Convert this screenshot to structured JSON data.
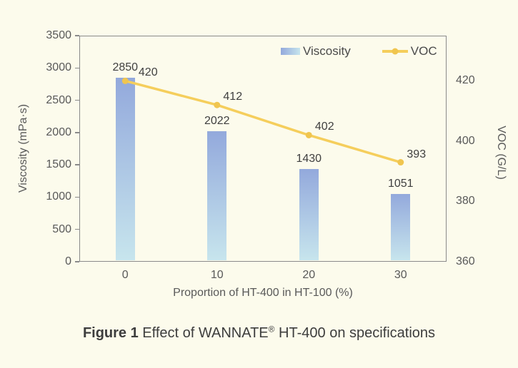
{
  "caption": {
    "label": "Figure 1",
    "title_pre": "Effect of WANNATE",
    "registered_mark": "®",
    "title_post": "HT-400 on specifications"
  },
  "chart_data": {
    "type": "bar",
    "subtype": "combo-bar-line",
    "categories": [
      "0",
      "10",
      "20",
      "30"
    ],
    "series": [
      {
        "name": "Viscosity",
        "type": "bar",
        "axis": "left",
        "values": [
          2850,
          2022,
          1430,
          1051
        ]
      },
      {
        "name": "VOC",
        "type": "line",
        "axis": "right",
        "values": [
          420,
          412,
          402,
          393
        ]
      }
    ],
    "xlabel": "Proportion of HT-400 in HT-100 (%)",
    "left_axis": {
      "label": "Viscosity (mPa·s)",
      "min": 0,
      "max": 3500,
      "ticks": [
        0,
        500,
        1000,
        1500,
        2000,
        2500,
        3000,
        3500
      ]
    },
    "right_axis": {
      "label": "VOC (G/L)",
      "min": 360,
      "max": 435,
      "ticks": [
        360,
        380,
        400,
        420
      ]
    },
    "legend": {
      "position": "top-right-inside",
      "entries": [
        "Viscosity",
        "VOC"
      ]
    },
    "grid": false,
    "data_labels": true
  },
  "colors": {
    "background": "#FCFBEC",
    "bar_gradient_top": "#93A9DC",
    "bar_gradient_bottom": "#C7E5ED",
    "line": "#F5CE5C",
    "marker": "#F0C54F",
    "frame": "#8A8A8A",
    "axis_text": "#595959",
    "label_text": "#3F3F3F"
  }
}
